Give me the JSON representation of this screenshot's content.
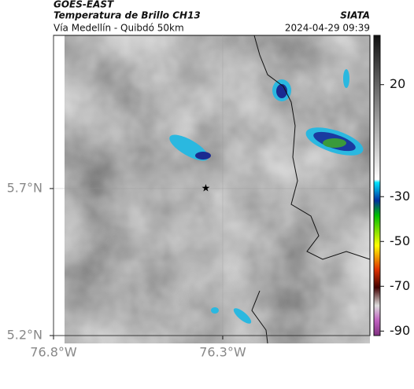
{
  "header": {
    "source": "GOES-EAST",
    "title": "Temperatura de Brillo CH13",
    "brand": "SIATA",
    "subtitle": "Vía Medellín - Quibdó 50km",
    "timestamp": "2024-04-29 09:39"
  },
  "map": {
    "lonlim": [
      -76.8,
      -75.865
    ],
    "latlim": [
      5.2,
      6.221
    ],
    "lonticks": [
      {
        "value": -76.8,
        "label": "76.8°W"
      },
      {
        "value": -76.3,
        "label": "76.3°W"
      }
    ],
    "latticks": [
      {
        "value": 5.7,
        "label": "5.7°N"
      },
      {
        "value": 5.2,
        "label": "5.2°N"
      }
    ],
    "marker": {
      "lon": -76.35,
      "lat": 5.7
    }
  },
  "colorbar": {
    "lim": [
      -92,
      42
    ],
    "ticks": [
      20,
      -30,
      -50,
      -70,
      -90
    ]
  }
}
